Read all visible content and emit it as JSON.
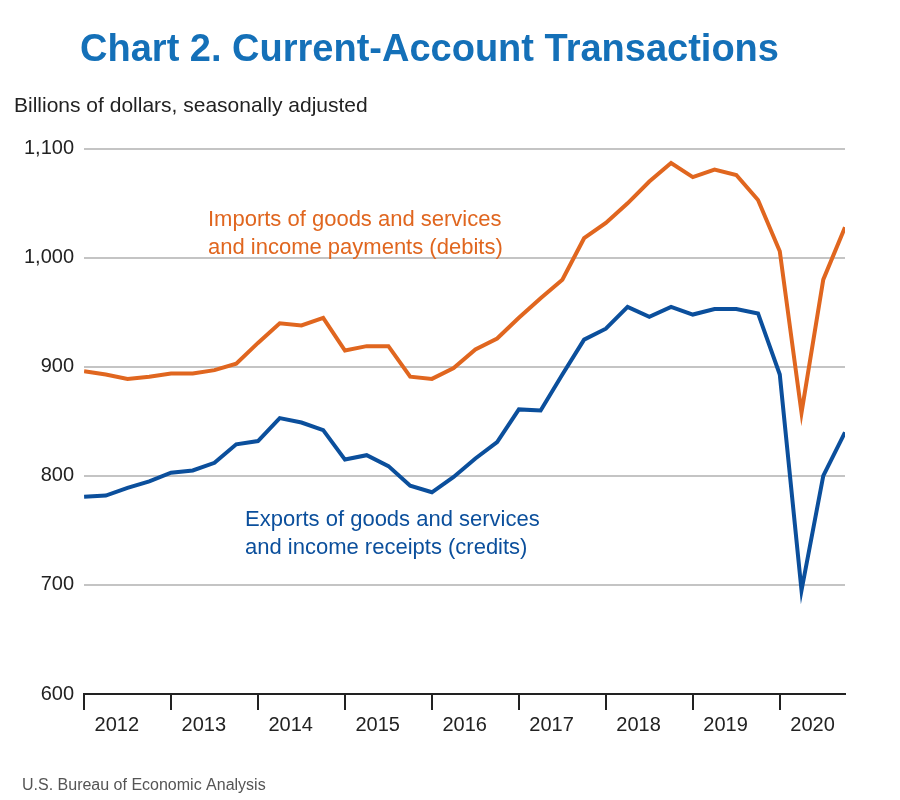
{
  "chart_data": {
    "type": "line",
    "title": "Chart 2. Current-Account Transactions",
    "subtitle": "Billions of dollars, seasonally adjusted",
    "source": "U.S. Bureau of Economic Analysis",
    "categories": [
      null,
      "2012",
      null,
      null,
      null,
      "2013",
      null,
      null,
      null,
      "2014",
      null,
      null,
      null,
      "2015",
      null,
      null,
      null,
      "2016",
      null,
      null,
      null,
      "2017",
      null,
      null,
      null,
      "2018",
      null,
      null,
      null,
      "2019",
      null,
      null,
      null,
      "2020",
      null,
      null
    ],
    "series": [
      {
        "name": "Imports of goods and services\nand income payments (debits)",
        "color": "#e0661f",
        "values": [
          896,
          893,
          889,
          891,
          894,
          894,
          897,
          903,
          922,
          940,
          938,
          945,
          915,
          919,
          919,
          891,
          889,
          899,
          916,
          926,
          945,
          963,
          980,
          1018,
          1032,
          1050,
          1070,
          1087,
          1074,
          1081,
          1076,
          1053,
          1006,
          858,
          980,
          1028
        ]
      },
      {
        "name": "Exports of goods and services\nand income receipts (credits)",
        "color": "#0b4f9c",
        "values": [
          781,
          782,
          789,
          795,
          803,
          805,
          812,
          829,
          832,
          853,
          849,
          842,
          815,
          819,
          809,
          791,
          785,
          799,
          816,
          831,
          861,
          860,
          893,
          925,
          935,
          955,
          946,
          955,
          948,
          953,
          953,
          949,
          893,
          695,
          800,
          840
        ]
      }
    ],
    "ylim": [
      600,
      1100
    ],
    "yticks": [
      600,
      700,
      800,
      900,
      {
        "value": 1000,
        "label": "1,000"
      },
      {
        "value": 1100,
        "label": "1,100"
      }
    ],
    "grid": true
  }
}
